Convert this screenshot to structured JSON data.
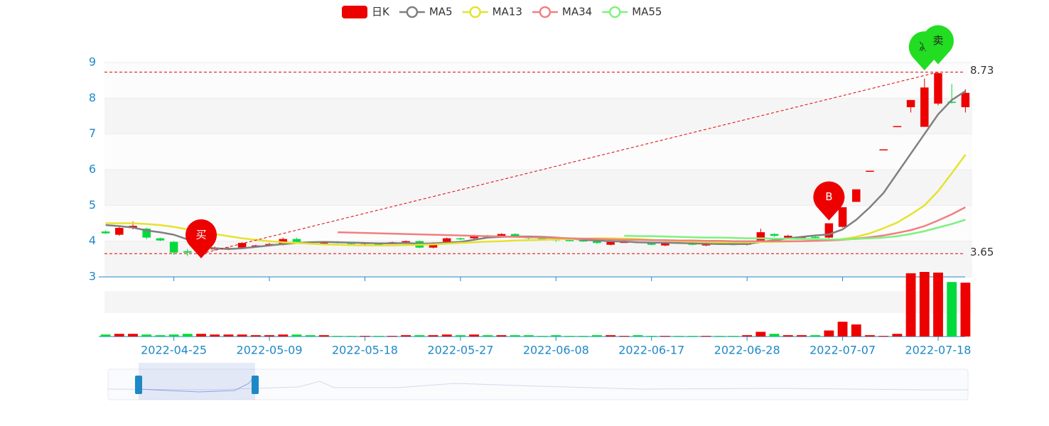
{
  "chart_data": {
    "type": "candlestick",
    "categories": [
      null,
      null,
      null,
      null,
      null,
      "2022-04-25",
      null,
      null,
      null,
      null,
      null,
      null,
      "2022-05-09",
      null,
      null,
      null,
      null,
      null,
      null,
      "2022-05-18",
      null,
      null,
      null,
      null,
      null,
      null,
      "2022-05-27",
      null,
      null,
      null,
      null,
      null,
      null,
      "2022-06-08",
      null,
      null,
      null,
      null,
      null,
      null,
      "2022-06-17",
      null,
      null,
      null,
      null,
      null,
      null,
      "2022-06-28",
      null,
      null,
      null,
      null,
      null,
      null,
      "2022-07-07",
      null,
      null,
      null,
      null,
      null,
      null,
      "2022-07-18",
      null,
      null
    ],
    "candles": {
      "name": "日K",
      "color_up": "#ec0000",
      "color_down": "#00da3c",
      "values": [
        [
          4.27,
          4.22,
          4.2,
          4.3
        ],
        [
          4.18,
          4.37,
          4.15,
          4.4
        ],
        [
          4.37,
          4.43,
          4.33,
          4.55
        ],
        [
          4.35,
          4.1,
          4.05,
          4.38
        ],
        [
          4.08,
          4.02,
          4.0,
          4.1
        ],
        [
          3.98,
          3.68,
          3.62,
          4.0
        ],
        [
          3.72,
          3.68,
          3.58,
          3.78
        ],
        [
          3.78,
          3.82,
          3.65,
          3.85
        ],
        [
          3.77,
          3.82,
          3.74,
          3.85
        ],
        [
          3.78,
          3.81,
          3.75,
          3.83
        ],
        [
          3.82,
          3.95,
          3.8,
          3.97
        ],
        [
          3.85,
          3.88,
          3.82,
          3.9
        ],
        [
          3.88,
          3.92,
          3.85,
          3.95
        ],
        [
          3.9,
          4.06,
          3.88,
          4.1
        ],
        [
          4.06,
          3.98,
          3.95,
          4.1
        ],
        [
          3.95,
          3.93,
          3.9,
          3.97
        ],
        [
          3.93,
          3.98,
          3.9,
          4.0
        ],
        [
          3.98,
          3.95,
          3.93,
          4.0
        ],
        [
          3.97,
          3.92,
          3.9,
          3.98
        ],
        [
          3.93,
          3.95,
          3.9,
          3.97
        ],
        [
          3.92,
          3.9,
          3.88,
          3.95
        ],
        [
          3.95,
          3.97,
          3.92,
          3.99
        ],
        [
          3.97,
          4.0,
          3.95,
          4.02
        ],
        [
          4.0,
          3.82,
          3.8,
          4.02
        ],
        [
          3.82,
          3.95,
          3.8,
          3.97
        ],
        [
          3.98,
          4.08,
          3.95,
          4.1
        ],
        [
          4.08,
          4.05,
          4.02,
          4.1
        ],
        [
          4.08,
          4.15,
          4.05,
          4.18
        ],
        [
          4.15,
          4.1,
          4.08,
          4.18
        ],
        [
          4.12,
          4.2,
          4.1,
          4.22
        ],
        [
          4.2,
          4.12,
          4.1,
          4.22
        ],
        [
          4.12,
          4.08,
          4.05,
          4.14
        ],
        [
          4.08,
          4.05,
          4.02,
          4.1
        ],
        [
          4.05,
          4.02,
          3.98,
          4.07
        ],
        [
          4.03,
          4.02,
          4.0,
          4.05
        ],
        [
          4.02,
          4.0,
          3.98,
          4.04
        ],
        [
          4.0,
          3.95,
          3.92,
          4.02
        ],
        [
          3.9,
          3.98,
          3.88,
          4.0
        ],
        [
          3.97,
          3.98,
          3.95,
          4.0
        ],
        [
          3.98,
          3.96,
          3.94,
          4.0
        ],
        [
          3.95,
          3.9,
          3.88,
          3.97
        ],
        [
          3.88,
          3.97,
          3.86,
          3.98
        ],
        [
          3.96,
          3.95,
          3.93,
          3.98
        ],
        [
          3.95,
          3.9,
          3.88,
          3.96
        ],
        [
          3.88,
          3.94,
          3.86,
          3.96
        ],
        [
          3.93,
          3.92,
          3.9,
          3.95
        ],
        [
          3.92,
          3.9,
          3.88,
          3.94
        ],
        [
          3.9,
          3.93,
          3.88,
          3.95
        ],
        [
          4.0,
          4.25,
          3.98,
          4.35
        ],
        [
          4.2,
          4.15,
          4.12,
          4.22
        ],
        [
          4.1,
          4.15,
          4.08,
          4.18
        ],
        [
          4.1,
          4.12,
          4.08,
          4.14
        ],
        [
          4.12,
          4.1,
          4.08,
          4.14
        ],
        [
          4.1,
          4.5,
          4.08,
          4.5
        ],
        [
          4.4,
          4.95,
          4.38,
          4.95
        ],
        [
          5.1,
          5.45,
          5.1,
          5.45
        ],
        [
          5.97,
          5.97,
          5.97,
          5.97
        ],
        [
          6.57,
          6.57,
          6.57,
          6.57
        ],
        [
          7.22,
          7.22,
          7.22,
          7.22
        ],
        [
          7.75,
          7.95,
          7.6,
          7.95
        ],
        [
          7.2,
          8.3,
          7.2,
          8.55
        ],
        [
          7.85,
          8.7,
          7.8,
          8.73
        ],
        [
          7.9,
          7.88,
          7.85,
          8.4
        ],
        [
          7.75,
          8.15,
          7.6,
          8.25
        ]
      ]
    },
    "series": [
      {
        "name": "MA5",
        "color": "#808080",
        "values": [
          4.45,
          4.42,
          4.38,
          4.3,
          4.25,
          4.18,
          4.05,
          3.85,
          3.8,
          3.78,
          3.8,
          3.84,
          3.88,
          3.92,
          3.95,
          3.97,
          3.98,
          3.97,
          3.96,
          3.95,
          3.94,
          3.94,
          3.95,
          3.93,
          3.94,
          3.96,
          3.98,
          4.04,
          4.1,
          4.12,
          4.13,
          4.13,
          4.12,
          4.1,
          4.07,
          4.04,
          4.02,
          4.0,
          3.99,
          3.97,
          3.96,
          3.96,
          3.95,
          3.94,
          3.93,
          3.92,
          3.92,
          3.92,
          3.98,
          4.03,
          4.08,
          4.12,
          4.16,
          4.19,
          4.33,
          4.6,
          4.95,
          5.35,
          5.9,
          6.45,
          7.0,
          7.55,
          7.95,
          8.2
        ]
      },
      {
        "name": "MA13",
        "color": "#e6e22e",
        "values": [
          4.5,
          4.5,
          4.5,
          4.48,
          4.45,
          4.4,
          4.33,
          4.26,
          4.2,
          4.14,
          4.08,
          4.04,
          4.0,
          3.97,
          3.95,
          3.93,
          3.91,
          3.9,
          3.89,
          3.88,
          3.88,
          3.88,
          3.89,
          3.9,
          3.91,
          3.93,
          3.95,
          3.97,
          3.99,
          4.0,
          4.02,
          4.03,
          4.04,
          4.05,
          4.06,
          4.07,
          4.08,
          4.08,
          4.07,
          4.06,
          4.04,
          4.02,
          4.0,
          3.99,
          3.98,
          3.97,
          3.97,
          3.97,
          3.98,
          3.98,
          3.99,
          4.0,
          4.01,
          4.03,
          4.06,
          4.12,
          4.22,
          4.36,
          4.52,
          4.75,
          5.0,
          5.4,
          5.9,
          6.42
        ]
      },
      {
        "name": "MA34",
        "color": "#f08080",
        "values": [
          null,
          null,
          null,
          null,
          null,
          null,
          null,
          null,
          null,
          null,
          null,
          null,
          null,
          null,
          null,
          null,
          null,
          4.25,
          4.24,
          4.23,
          4.22,
          4.21,
          4.2,
          4.19,
          4.18,
          4.17,
          4.16,
          4.15,
          4.14,
          4.13,
          4.12,
          4.11,
          4.1,
          4.09,
          4.08,
          4.07,
          4.06,
          4.05,
          4.04,
          4.04,
          4.03,
          4.03,
          4.02,
          4.02,
          4.01,
          4.01,
          4.0,
          4.0,
          4.0,
          4.0,
          4.0,
          4.0,
          4.01,
          4.02,
          4.04,
          4.07,
          4.11,
          4.16,
          4.23,
          4.31,
          4.42,
          4.58,
          4.75,
          4.95
        ]
      },
      {
        "name": "MA55",
        "color": "#7ef27e",
        "values": [
          null,
          null,
          null,
          null,
          null,
          null,
          null,
          null,
          null,
          null,
          null,
          null,
          null,
          null,
          null,
          null,
          null,
          null,
          null,
          null,
          null,
          null,
          null,
          null,
          null,
          null,
          null,
          null,
          null,
          null,
          null,
          null,
          null,
          null,
          null,
          null,
          null,
          null,
          4.15,
          4.14,
          4.14,
          4.13,
          4.12,
          4.11,
          4.1,
          4.1,
          4.09,
          4.08,
          4.08,
          4.07,
          4.07,
          4.06,
          4.06,
          4.05,
          4.05,
          4.06,
          4.08,
          4.1,
          4.14,
          4.2,
          4.28,
          4.38,
          4.48,
          4.6
        ]
      }
    ],
    "volume": [
      3,
      4,
      4,
      3,
      2,
      3,
      4,
      4,
      3,
      3,
      3,
      2,
      2,
      3,
      3,
      2,
      2,
      1,
      1,
      1,
      1,
      1,
      2,
      2,
      2,
      3,
      2,
      3,
      2,
      2,
      2,
      2,
      1,
      2,
      1,
      1,
      2,
      2,
      1,
      2,
      1,
      1,
      1,
      1,
      1,
      1,
      1,
      2,
      7,
      4,
      2,
      2,
      2,
      9,
      22,
      18,
      2,
      1,
      4,
      94,
      96,
      95,
      81,
      80
    ],
    "ylim": [
      3,
      9
    ],
    "yticks": [
      3,
      4,
      5,
      6,
      7,
      8,
      9
    ],
    "split_area": [
      "#f5f5f5",
      "#fcfcfc"
    ],
    "mark_lines": [
      3.65,
      8.73
    ],
    "mark_line_color": "#e00000",
    "mark_points": [
      {
        "label": "买",
        "index": 7,
        "value": 3.52,
        "color": "#ec0000"
      },
      {
        "label": "B",
        "index": 53,
        "value": 4.58,
        "color": "#ec0000"
      },
      {
        "label": "减",
        "index": 60,
        "value": 8.78,
        "color": "#22dd22"
      },
      {
        "label": "卖",
        "index": 61,
        "value": 8.95,
        "color": "#22dd22"
      }
    ]
  }
}
